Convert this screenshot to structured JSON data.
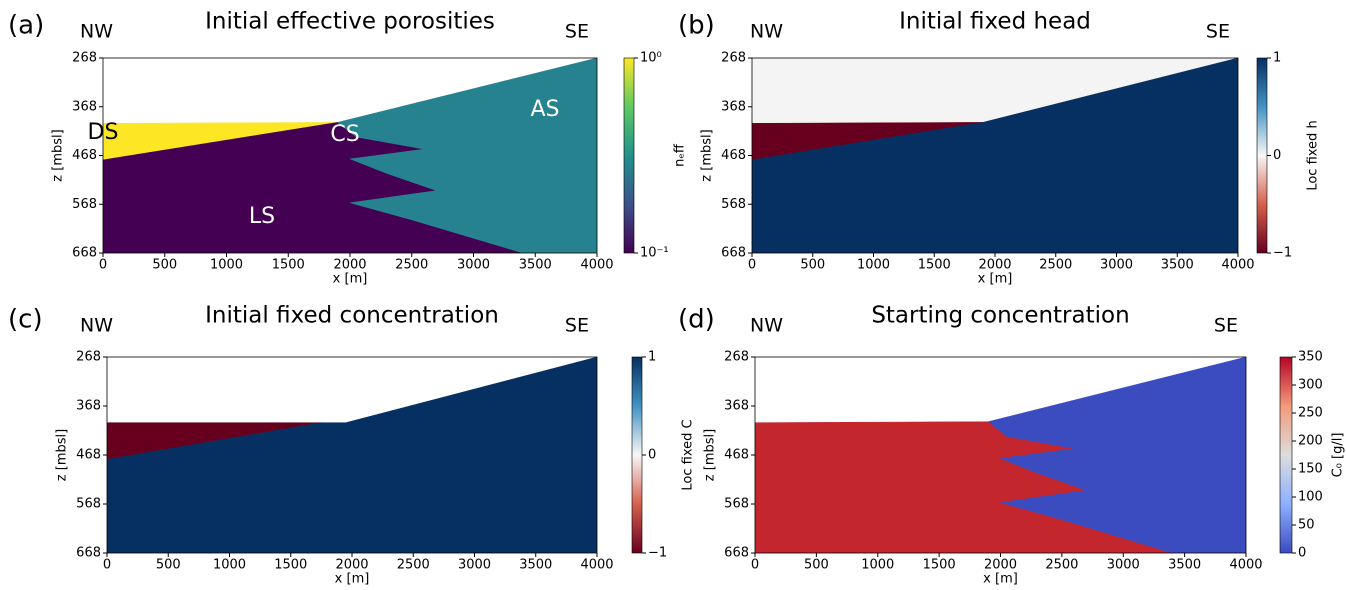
{
  "chart_data": [
    {
      "type": "section",
      "panel": "(a)",
      "title": "Initial effective porosities",
      "left_label": "NW",
      "right_label": "SE",
      "xlabel": "x [m]",
      "ylabel": "z [mbsl]",
      "xlim": [
        0,
        4000
      ],
      "ylim": [
        668,
        268
      ],
      "xticks": [
        0,
        500,
        1000,
        1500,
        2000,
        2500,
        3000,
        3500,
        4000
      ],
      "yticks": [
        268,
        368,
        468,
        568,
        668
      ],
      "colorbar": {
        "label": "nₑff",
        "scale": "log",
        "lim": [
          0.1,
          1
        ],
        "colors": [
          "#440154",
          "#3b528b",
          "#21918c",
          "#5ec962",
          "#fde725"
        ],
        "ticks": [
          {
            "value": 1,
            "label": "10⁰"
          },
          {
            "value": 0.1,
            "label": "10⁻¹"
          }
        ]
      },
      "regions": [
        {
          "color": "#fde725",
          "x": [
            0,
            1900,
            0
          ],
          "z": [
            402,
            400,
            477
          ]
        },
        {
          "color": "#440154",
          "x": [
            0,
            1900,
            2050,
            2600,
            2000,
            2300,
            2700,
            2000,
            2500,
            3400,
            0
          ],
          "z": [
            477,
            400,
            430,
            455,
            475,
            505,
            540,
            565,
            600,
            668,
            668
          ]
        },
        {
          "color": "#26828e",
          "x": [
            1900,
            4000,
            4000,
            3400,
            2500,
            2000,
            2700,
            2300,
            2000,
            2600,
            2050
          ],
          "z": [
            400,
            268,
            668,
            668,
            600,
            565,
            540,
            505,
            475,
            455,
            430
          ]
        }
      ],
      "annotations": [
        "DS",
        "CS",
        "AS",
        "LS"
      ]
    },
    {
      "type": "section",
      "panel": "(b)",
      "title": "Initial fixed head",
      "left_label": "NW",
      "right_label": "SE",
      "xlabel": "x [m]",
      "ylabel": "z [mbsl]",
      "xlim": [
        0,
        4000
      ],
      "ylim": [
        668,
        268
      ],
      "xticks": [
        0,
        500,
        1000,
        1500,
        2000,
        2500,
        3000,
        3500,
        4000
      ],
      "yticks": [
        268,
        368,
        468,
        568,
        668
      ],
      "colorbar": {
        "label": "Loc fixed h",
        "scale": "linear",
        "lim": [
          -1,
          1
        ],
        "colors": [
          "#67001f",
          "#d6604d",
          "#f7f7f7",
          "#4393c3",
          "#053061"
        ],
        "ticks": [
          1,
          0,
          {
            "value": -1,
            "label": "−1"
          }
        ]
      },
      "regions": [
        {
          "color": "#f4f4f4",
          "x": [
            0,
            4000,
            4000,
            0
          ],
          "z": [
            268,
            268,
            668,
            668
          ]
        },
        {
          "color": "#67001f",
          "x": [
            0,
            1900,
            0
          ],
          "z": [
            402,
            400,
            477
          ]
        },
        {
          "color": "#053061",
          "x": [
            0,
            1900,
            4000,
            4000,
            0
          ],
          "z": [
            477,
            400,
            268,
            668,
            668
          ]
        }
      ]
    },
    {
      "type": "section",
      "panel": "(c)",
      "title": "Initial fixed concentration",
      "left_label": "NW",
      "right_label": "SE",
      "xlabel": "x [m]",
      "ylabel": "z [mbsl]",
      "xlim": [
        0,
        4000
      ],
      "ylim": [
        668,
        268
      ],
      "xticks": [
        0,
        500,
        1000,
        1500,
        2000,
        2500,
        3000,
        3500,
        4000
      ],
      "yticks": [
        268,
        368,
        468,
        568,
        668
      ],
      "colorbar": {
        "label": "Loc fixed C",
        "scale": "linear",
        "lim": [
          -1,
          1
        ],
        "colors": [
          "#67001f",
          "#d6604d",
          "#f7f7f7",
          "#4393c3",
          "#053061"
        ],
        "ticks": [
          1,
          0,
          {
            "value": -1,
            "label": "−1"
          }
        ]
      },
      "regions": [
        {
          "color": "#67001f",
          "x": [
            0,
            1750,
            0
          ],
          "z": [
            402,
            402,
            477
          ]
        },
        {
          "color": "#053061",
          "x": [
            0,
            1750,
            1950,
            4000,
            4000,
            0
          ],
          "z": [
            477,
            402,
            402,
            268,
            668,
            668
          ]
        }
      ]
    },
    {
      "type": "section",
      "panel": "(d)",
      "title": "Starting concentration",
      "left_label": "NW",
      "right_label": "SE",
      "xlabel": "x [m]",
      "ylabel": "z [mbsl]",
      "xlim": [
        0,
        4000
      ],
      "ylim": [
        668,
        268
      ],
      "xticks": [
        0,
        500,
        1000,
        1500,
        2000,
        2500,
        3000,
        3500,
        4000
      ],
      "yticks": [
        268,
        368,
        468,
        568,
        668
      ],
      "colorbar": {
        "label": "C₀ [g/l]",
        "scale": "linear",
        "lim": [
          0,
          350
        ],
        "colors": [
          "#3b4cc0",
          "#8db0fe",
          "#dddddd",
          "#f49a7b",
          "#b40426"
        ],
        "ticks": [
          350,
          300,
          250,
          200,
          150,
          100,
          50,
          0
        ]
      },
      "regions": [
        {
          "color": "#c4262e",
          "x": [
            0,
            1900,
            2050,
            2600,
            2000,
            2300,
            2700,
            2000,
            2500,
            3400,
            0
          ],
          "z": [
            402,
            400,
            430,
            455,
            475,
            505,
            540,
            565,
            600,
            668,
            668
          ]
        },
        {
          "color": "#3b4cc0",
          "x": [
            1900,
            4000,
            4000,
            3400,
            2500,
            2000,
            2700,
            2300,
            2000,
            2600,
            2050
          ],
          "z": [
            400,
            268,
            668,
            668,
            600,
            565,
            540,
            505,
            475,
            455,
            430
          ]
        }
      ]
    }
  ]
}
